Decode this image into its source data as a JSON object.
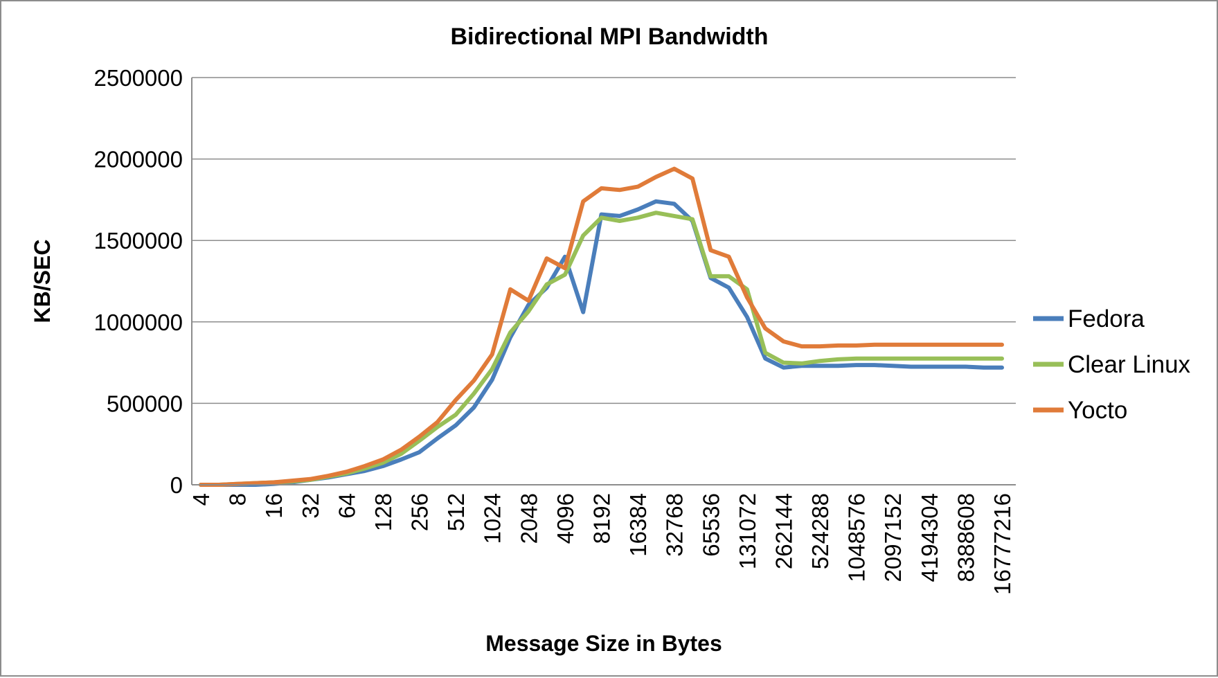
{
  "chart_data": {
    "type": "line",
    "title": "Bidirectional MPI Bandwidth",
    "xlabel": "Message Size in Bytes",
    "ylabel": "KB/SEC",
    "ylim": [
      0,
      2500000
    ],
    "yticks": [
      "0",
      "500000",
      "1000000",
      "1500000",
      "2000000",
      "2500000"
    ],
    "grid": "horizontal",
    "legend": "right",
    "x_tick_labels": [
      "4",
      "8",
      "16",
      "32",
      "64",
      "128",
      "256",
      "512",
      "1024",
      "2048",
      "4096",
      "8192",
      "16384",
      "32768",
      "65536",
      "131072",
      "262144",
      "524288",
      "1048576",
      "2097152",
      "4194304",
      "8388608",
      "16777216"
    ],
    "x": [
      "4",
      "6",
      "8",
      "12",
      "16",
      "24",
      "32",
      "48",
      "64",
      "96",
      "128",
      "192",
      "256",
      "384",
      "512",
      "768",
      "1024",
      "1536",
      "2048",
      "3072",
      "4096",
      "6144",
      "8192",
      "12288",
      "16384",
      "24576",
      "32768",
      "49152",
      "65536",
      "98304",
      "131072",
      "196608",
      "262144",
      "393216",
      "524288",
      "786432",
      "1048576",
      "1572864",
      "2097152",
      "3145728",
      "4194304",
      "6291456",
      "8388608",
      "12582912",
      "16777216"
    ],
    "series": [
      {
        "name": "Fedora",
        "color": "#4a7ebb",
        "values": [
          0,
          0,
          0,
          0,
          5000,
          15000,
          30000,
          45000,
          65000,
          85000,
          115000,
          155000,
          200000,
          285000,
          365000,
          475000,
          645000,
          905000,
          1105000,
          1210000,
          1400000,
          1060000,
          1660000,
          1650000,
          1690000,
          1740000,
          1725000,
          1620000,
          1270000,
          1210000,
          1030000,
          775000,
          720000,
          730000,
          730000,
          730000,
          735000,
          735000,
          730000,
          725000,
          725000,
          725000,
          725000,
          720000,
          720000
        ]
      },
      {
        "name": "Clear Linux",
        "color": "#98bf58",
        "values": [
          0,
          0,
          5000,
          10000,
          15000,
          20000,
          30000,
          50000,
          70000,
          100000,
          135000,
          190000,
          270000,
          355000,
          430000,
          560000,
          710000,
          935000,
          1065000,
          1230000,
          1290000,
          1530000,
          1640000,
          1620000,
          1640000,
          1670000,
          1650000,
          1630000,
          1280000,
          1280000,
          1200000,
          810000,
          750000,
          745000,
          760000,
          770000,
          775000,
          775000,
          775000,
          775000,
          775000,
          775000,
          775000,
          775000,
          775000
        ]
      },
      {
        "name": "Yocto",
        "color": "#e07b39",
        "values": [
          0,
          0,
          5000,
          10000,
          15000,
          25000,
          35000,
          55000,
          80000,
          115000,
          155000,
          215000,
          295000,
          385000,
          520000,
          640000,
          800000,
          1200000,
          1130000,
          1390000,
          1330000,
          1740000,
          1820000,
          1810000,
          1830000,
          1890000,
          1940000,
          1880000,
          1440000,
          1400000,
          1150000,
          960000,
          880000,
          850000,
          850000,
          855000,
          855000,
          860000,
          860000,
          860000,
          860000,
          860000,
          860000,
          860000,
          860000
        ]
      }
    ]
  }
}
